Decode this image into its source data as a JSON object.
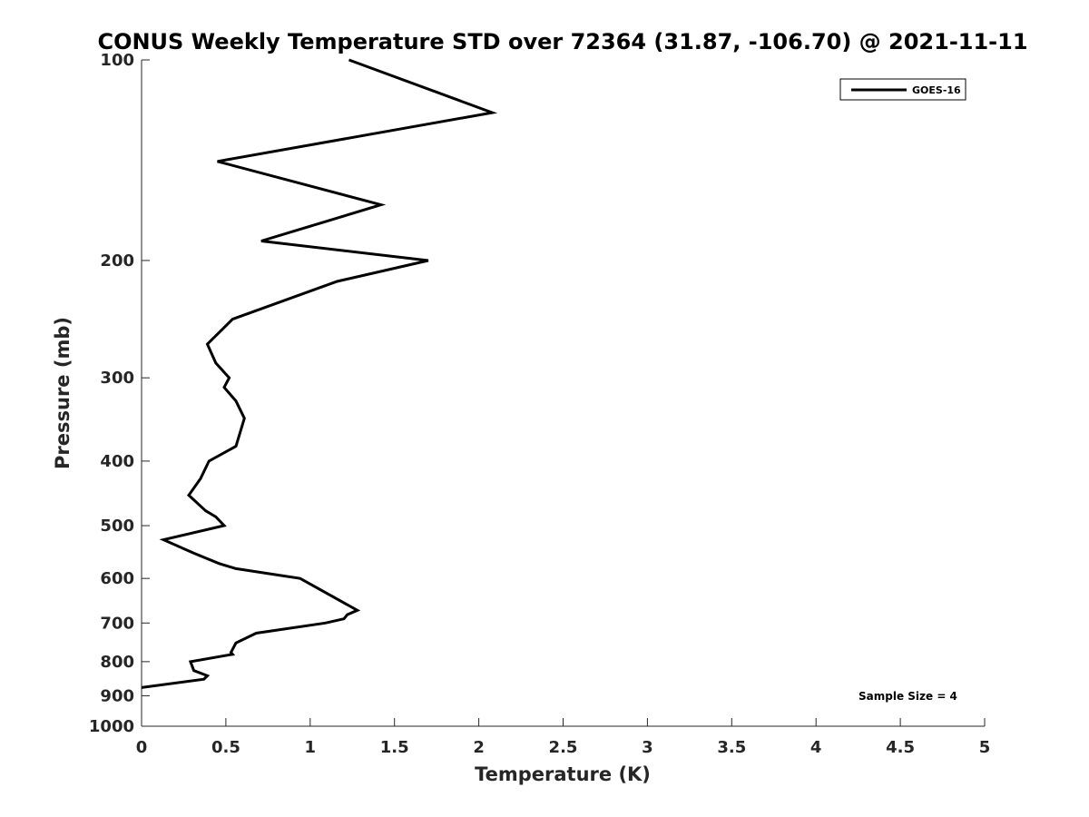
{
  "chart_data": {
    "type": "line",
    "title": "CONUS Weekly Temperature STD over 72364 (31.87, -106.70) @ 2021-11-11",
    "xlabel": "Temperature (K)",
    "ylabel": "Pressure (mb)",
    "xlim": [
      0,
      5
    ],
    "ylim": [
      100,
      1000
    ],
    "y_scale": "log",
    "y_reversed": true,
    "x_ticks": [
      "0",
      "0.5",
      "1",
      "1.5",
      "2",
      "2.5",
      "3",
      "3.5",
      "4",
      "4.5",
      "5"
    ],
    "y_ticks": [
      "100",
      "200",
      "300",
      "400",
      "500",
      "600",
      "700",
      "800",
      "900",
      "1000"
    ],
    "grid": false,
    "legend": {
      "position": "top-right",
      "entries": [
        "GOES-16"
      ]
    },
    "annotations": [
      "Sample Size = 4"
    ],
    "series": [
      {
        "name": "GOES-16",
        "color": "#000000",
        "x": [
          1.23,
          2.08,
          0.45,
          1.42,
          0.71,
          1.7,
          1.16,
          0.54,
          0.39,
          0.44,
          0.52,
          0.49,
          0.56,
          0.61,
          0.56,
          0.4,
          0.35,
          0.28,
          0.38,
          0.44,
          0.49,
          0.13,
          0.31,
          0.46,
          0.56,
          0.94,
          1.28,
          1.22,
          1.2,
          1.09,
          0.68,
          0.56,
          0.53,
          0.54,
          0.29,
          0.31,
          0.39,
          0.37,
          0.0
        ],
        "y": [
          100,
          120,
          142,
          165,
          187,
          200,
          215,
          245,
          267,
          285,
          300,
          310,
          325,
          345,
          380,
          400,
          425,
          450,
          475,
          485,
          500,
          525,
          550,
          570,
          580,
          600,
          670,
          680,
          690,
          700,
          725,
          750,
          775,
          780,
          800,
          825,
          840,
          850,
          875
        ]
      }
    ]
  }
}
